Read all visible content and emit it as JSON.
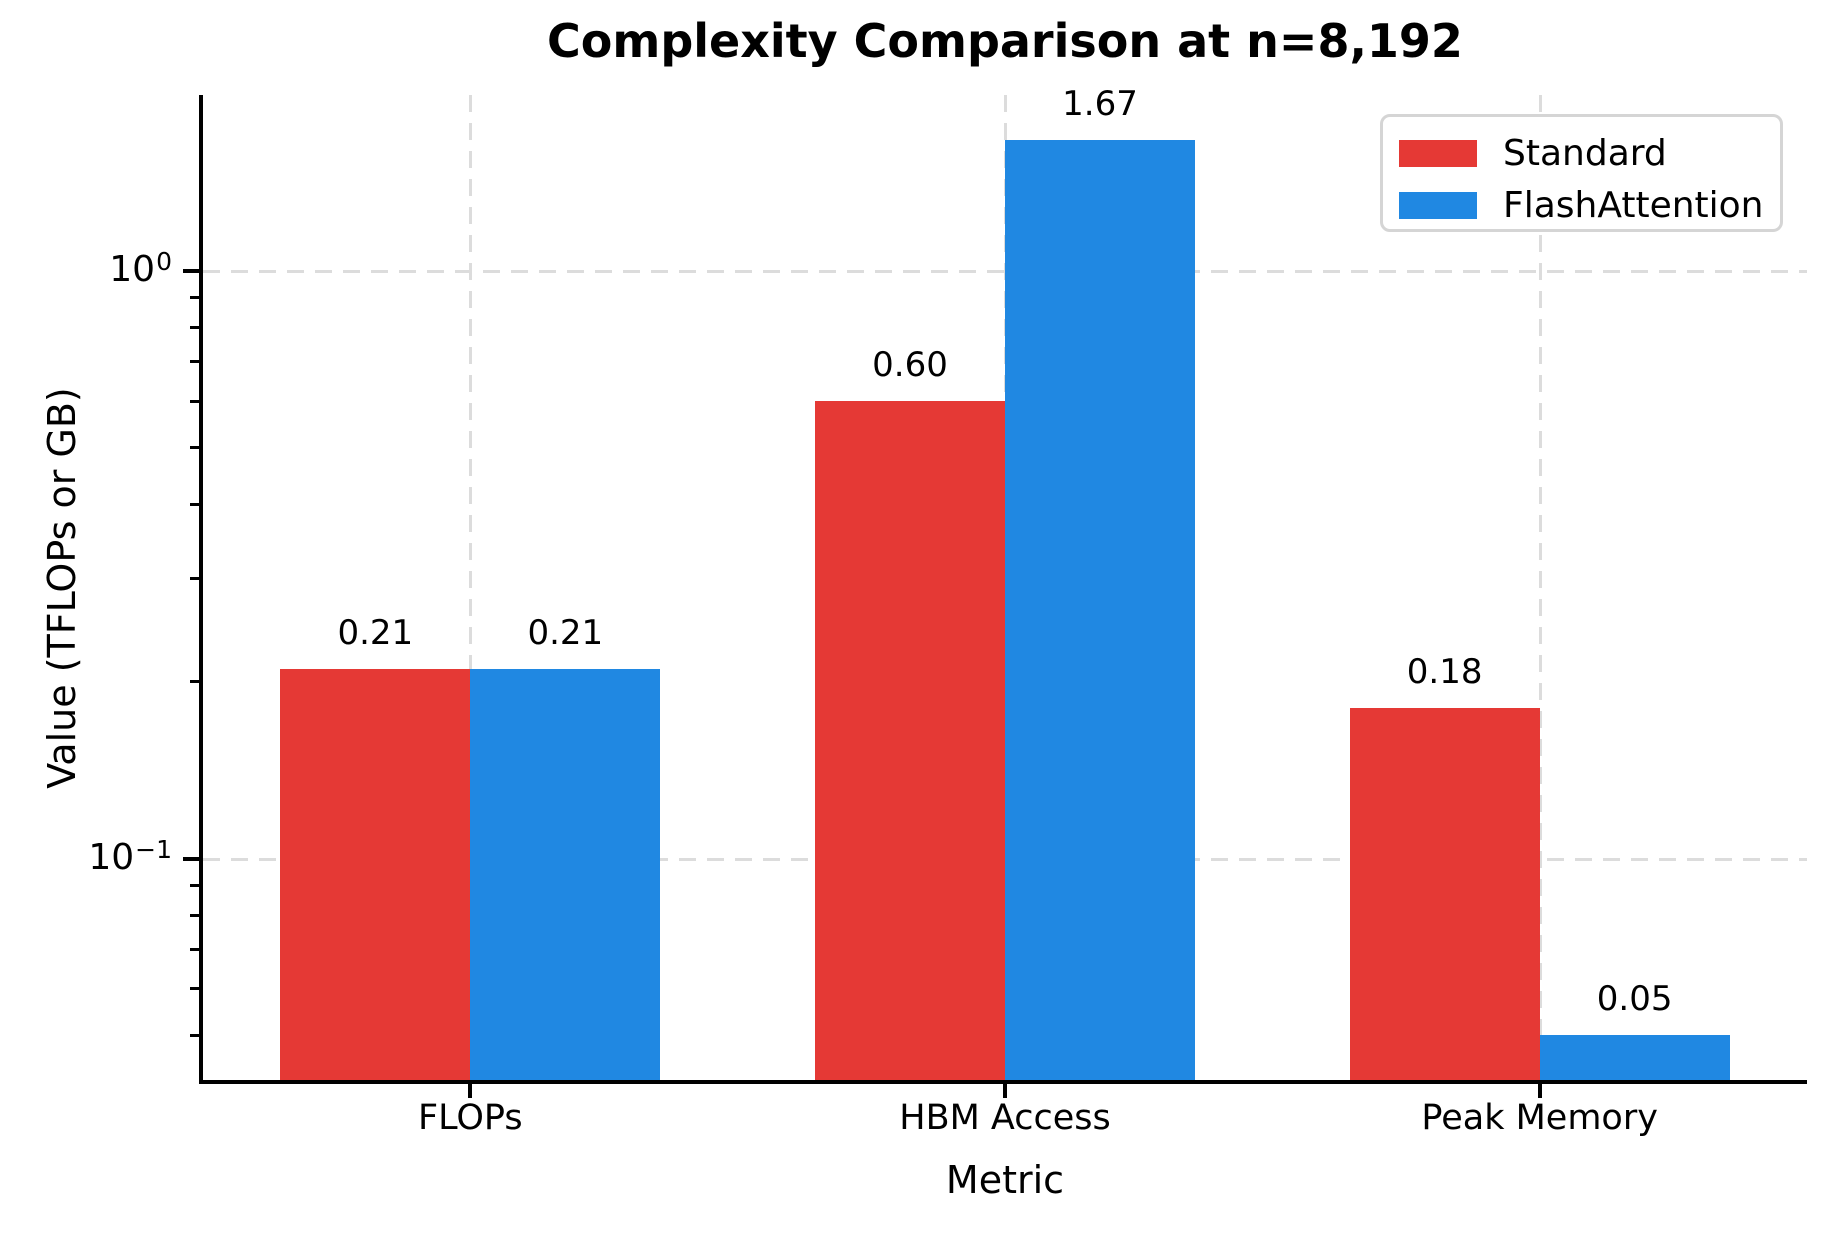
{
  "chart_data": {
    "type": "bar",
    "title": "Complexity Comparison at n=8,192",
    "xlabel": "Metric",
    "ylabel": "Value (TFLOPs or GB)",
    "categories": [
      "FLOPs",
      "HBM Access",
      "Peak Memory"
    ],
    "series": [
      {
        "name": "Standard",
        "color": "#e53935",
        "values": [
          0.21,
          0.6,
          0.18
        ],
        "labels": [
          "0.21",
          "0.60",
          "0.18"
        ]
      },
      {
        "name": "FlashAttention",
        "color": "#2088e2",
        "values": [
          0.21,
          1.67,
          0.05
        ],
        "labels": [
          "0.21",
          "1.67",
          "0.05"
        ]
      }
    ],
    "yscale": "log",
    "ylim": [
      0.042,
      1.99
    ],
    "y_major_ticks": [
      {
        "value": 1,
        "base": "10",
        "exponent": "0"
      },
      {
        "value": 0.1,
        "base": "10",
        "exponent": "−1"
      }
    ],
    "grid": "dashed, on major y ticks and category x centers",
    "legend_position": "upper right",
    "colors": {
      "grid": "#dcdcdc",
      "axis": "#000000",
      "background": "#ffffff",
      "legend_border": "#d5d5d5"
    }
  }
}
